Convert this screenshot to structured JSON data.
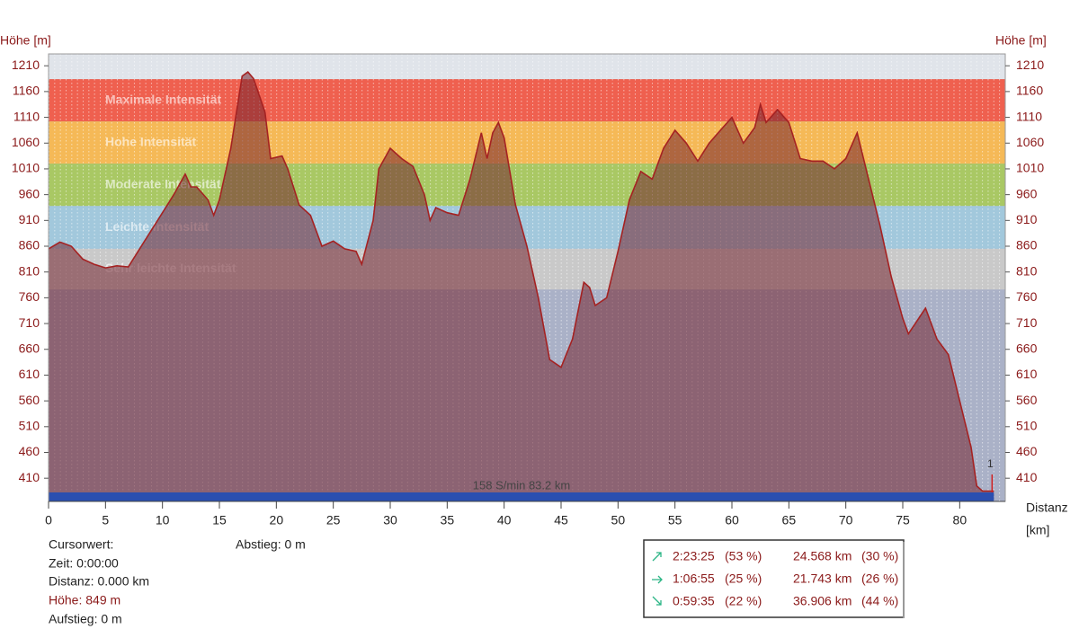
{
  "chart_data": {
    "type": "area",
    "y_label": "Höhe [m]",
    "y2_label": "Höhe [m]",
    "x_label": "Distanz",
    "x_unit": "[km]",
    "xlim": [
      0,
      84
    ],
    "ylim": [
      365,
      1233
    ],
    "xticks": [
      0,
      5,
      10,
      15,
      20,
      25,
      30,
      35,
      40,
      45,
      50,
      55,
      60,
      65,
      70,
      75,
      80
    ],
    "yticks": [
      410,
      460,
      510,
      560,
      610,
      660,
      710,
      760,
      810,
      860,
      910,
      960,
      1010,
      1060,
      1110,
      1160,
      1210
    ],
    "bands": [
      {
        "name": "Maximale Intensität",
        "low": 1102,
        "high": 1184,
        "color": "#ef604f"
      },
      {
        "name": "Hohe Intensität",
        "low": 1020,
        "high": 1102,
        "color": "#f5b957"
      },
      {
        "name": "Moderate Intensität",
        "low": 938,
        "high": 1020,
        "color": "#a9c864"
      },
      {
        "name": "Leichte Intensität",
        "low": 855,
        "high": 938,
        "color": "#a2c8dc"
      },
      {
        "name": "Sehr leichte Intensität",
        "low": 776,
        "high": 855,
        "color": "#c9c9c9"
      }
    ],
    "x": [
      0,
      1,
      2,
      3,
      4,
      5,
      6,
      7,
      8,
      9,
      10,
      11,
      12,
      12.5,
      13,
      14,
      14.5,
      15,
      16,
      17,
      17.5,
      18,
      19,
      19.5,
      20.5,
      21,
      22,
      23,
      24,
      25,
      26,
      27,
      27.5,
      28.5,
      29,
      30,
      31,
      32,
      33,
      33.5,
      34,
      35,
      36,
      37,
      38,
      38.5,
      39,
      39.5,
      40,
      41,
      42,
      43,
      44,
      45,
      46,
      47,
      47.5,
      48,
      49,
      50,
      51,
      52,
      53,
      54,
      55,
      56,
      57,
      58,
      59,
      60,
      61,
      62,
      62.5,
      63,
      64,
      65,
      66,
      67,
      68,
      69,
      70,
      71,
      72,
      73,
      74,
      75,
      75.5,
      77,
      78,
      79,
      80,
      81,
      81.5,
      82,
      83
    ],
    "series": [
      {
        "name": "Höhe",
        "color": "#a52222",
        "values": [
          855,
          868,
          860,
          835,
          825,
          818,
          822,
          820,
          855,
          890,
          925,
          960,
          1000,
          975,
          975,
          950,
          920,
          950,
          1050,
          1190,
          1198,
          1185,
          1120,
          1030,
          1035,
          1010,
          940,
          920,
          860,
          870,
          855,
          850,
          825,
          910,
          1010,
          1050,
          1030,
          1015,
          960,
          910,
          935,
          925,
          920,
          990,
          1080,
          1030,
          1080,
          1100,
          1070,
          940,
          860,
          760,
          640,
          625,
          680,
          790,
          780,
          745,
          760,
          850,
          950,
          1005,
          990,
          1050,
          1085,
          1060,
          1025,
          1060,
          1085,
          1110,
          1060,
          1090,
          1135,
          1100,
          1125,
          1100,
          1030,
          1025,
          1025,
          1010,
          1030,
          1080,
          990,
          900,
          800,
          720,
          690,
          740,
          680,
          650,
          560,
          470,
          395,
          385,
          385
        ]
      }
    ],
    "annotations": [
      "158 S/min 83.2 km",
      "1"
    ],
    "cursor": {
      "title": "Cursorwert:",
      "time": "Zeit: 0:00:00",
      "distance": "Distanz: 0.000 km",
      "height": "Höhe:  849 m",
      "ascent": "Aufstieg: 0 m",
      "descent": "Abstieg: 0 m"
    },
    "stats": [
      [
        "2:23:25",
        "(53 %)",
        "24.568 km",
        "(30 %)"
      ],
      [
        "1:06:55",
        "(25 %)",
        "21.743 km",
        "(26 %)"
      ],
      [
        "0:59:35",
        "(22 %)",
        "36.906 km",
        "(44 %)"
      ]
    ]
  }
}
